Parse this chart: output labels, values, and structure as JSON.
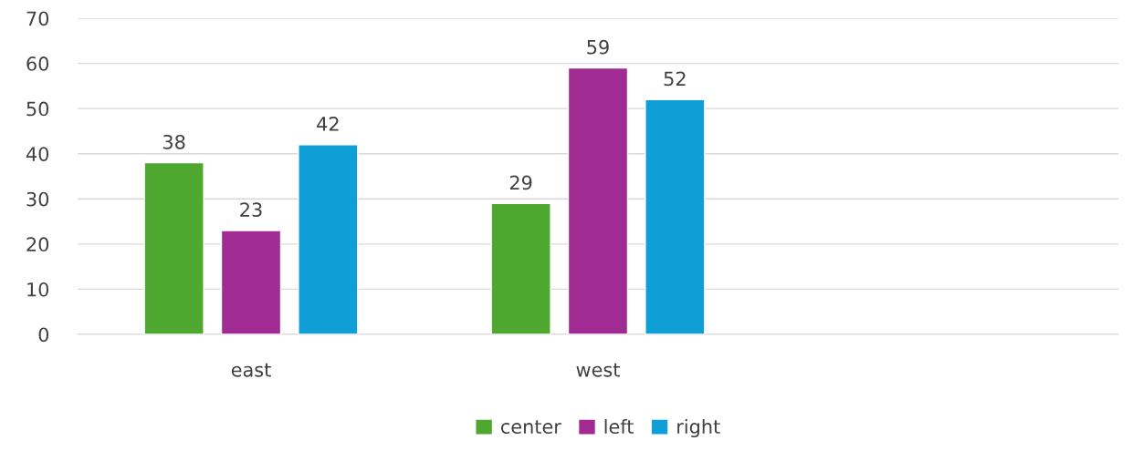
{
  "chart_data": {
    "type": "bar",
    "categories": [
      "east",
      "west",
      null
    ],
    "series": [
      {
        "name": "center",
        "color": "#4ea72e",
        "values": [
          38,
          29,
          null
        ]
      },
      {
        "name": "left",
        "color": "#a02b93",
        "values": [
          23,
          59,
          null
        ]
      },
      {
        "name": "right",
        "color": "#0f9ed5",
        "values": [
          42,
          52,
          null
        ]
      }
    ],
    "ylim": [
      0,
      70
    ],
    "yticks": [
      0,
      10,
      20,
      30,
      40,
      50,
      60,
      70
    ],
    "grid": "y",
    "legend": "bottom",
    "data_labels": true
  }
}
